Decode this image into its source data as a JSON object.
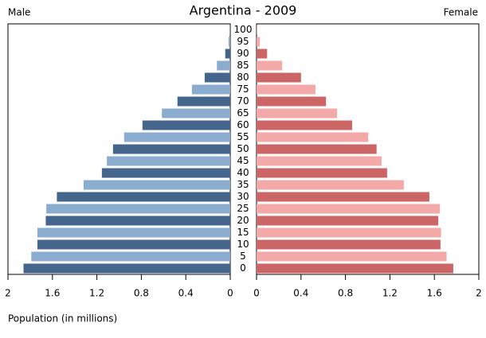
{
  "chart_data": {
    "type": "population-pyramid",
    "title": "Argentina - 2009",
    "x_label": "Population (in millions)",
    "categories": [
      "0",
      "5",
      "10",
      "15",
      "20",
      "25",
      "30",
      "35",
      "40",
      "45",
      "50",
      "55",
      "60",
      "65",
      "70",
      "75",
      "80",
      "85",
      "90",
      "95",
      "100"
    ],
    "series": [
      {
        "name": "Male",
        "side": "left",
        "colors": [
          "#45668c",
          "#8aaccf"
        ],
        "values": [
          1.86,
          1.79,
          1.735,
          1.735,
          1.66,
          1.655,
          1.56,
          1.32,
          1.155,
          1.11,
          1.055,
          0.955,
          0.79,
          0.615,
          0.475,
          0.345,
          0.23,
          0.12,
          0.045,
          0.015,
          0.002
        ]
      },
      {
        "name": "Female",
        "side": "right",
        "colors": [
          "#cc6666",
          "#f4a9a9"
        ],
        "values": [
          1.77,
          1.71,
          1.655,
          1.66,
          1.635,
          1.65,
          1.555,
          1.325,
          1.175,
          1.125,
          1.08,
          1.005,
          0.86,
          0.725,
          0.625,
          0.53,
          0.4,
          0.23,
          0.095,
          0.03,
          0.003
        ]
      }
    ],
    "xlim": [
      0,
      2
    ],
    "xticks": [
      0,
      0.4,
      0.8,
      1.2,
      1.6,
      2
    ]
  }
}
